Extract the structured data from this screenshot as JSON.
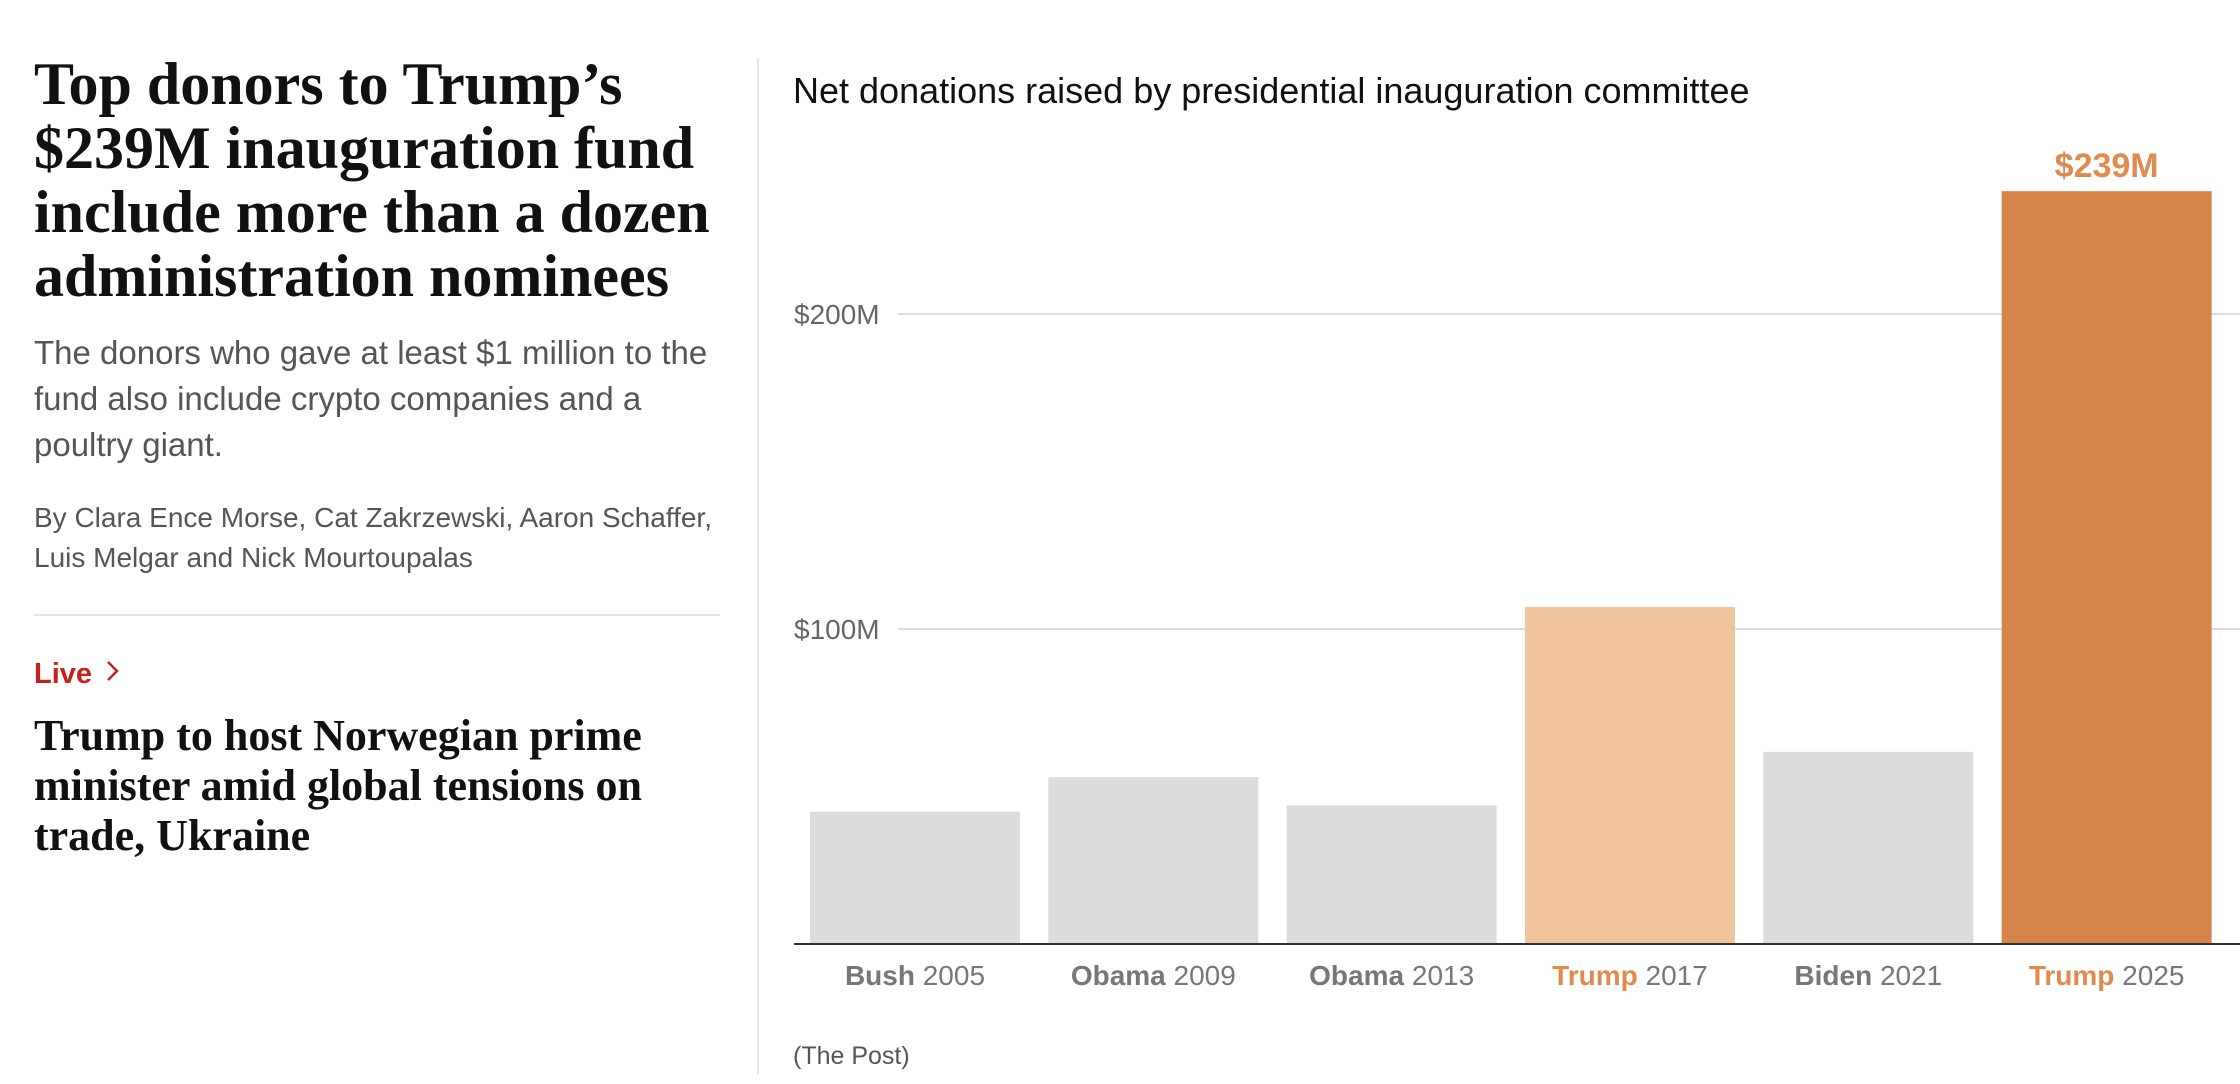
{
  "article": {
    "headline": "Top donors to Trump’s $239M inauguration fund include more than a dozen administration nominees",
    "dek": "The donors who gave at least $1 million to the fund also include crypto companies and a poultry giant.",
    "byline": "By Clara Ence Morse, Cat Zakrzewski, Aaron Schaffer, Luis Melgar and Nick Mourtoupalas"
  },
  "live": {
    "label": "Live",
    "icon": "chevron-right-icon",
    "headline": "Trump to host Norwegian prime minister amid global tensions on trade, Ukraine"
  },
  "colors": {
    "live_red": "#c5221f",
    "bar_gray": "#dddddd",
    "bar_light_orange": "#f0c49c",
    "bar_orange": "#d6854a",
    "orange_text": "#e08a4e",
    "gray_text": "#777777"
  },
  "chart_data": {
    "type": "bar",
    "title": "Net donations raised by presidential inauguration committee",
    "source": "(The Post)",
    "categories": [
      {
        "name": "Bush",
        "year": "2005"
      },
      {
        "name": "Obama",
        "year": "2009"
      },
      {
        "name": "Obama",
        "year": "2013"
      },
      {
        "name": "Trump",
        "year": "2017"
      },
      {
        "name": "Biden",
        "year": "2021"
      },
      {
        "name": "Trump",
        "year": "2025"
      }
    ],
    "values": [
      42,
      53,
      44,
      107,
      61,
      239
    ],
    "bar_colors": [
      "#dddddd",
      "#dddddd",
      "#dddddd",
      "#f0c49c",
      "#dddddd",
      "#d6854a"
    ],
    "label_colors": [
      "#777777",
      "#777777",
      "#777777",
      "#e08a4e",
      "#777777",
      "#e08a4e"
    ],
    "value_labels": [
      "",
      "",
      "",
      "",
      "",
      "$239M"
    ],
    "yticks": [
      100,
      200
    ],
    "ytick_labels": [
      "$100M",
      "$200M"
    ],
    "ylim": [
      0,
      250
    ],
    "grid": true,
    "legend": "none"
  }
}
